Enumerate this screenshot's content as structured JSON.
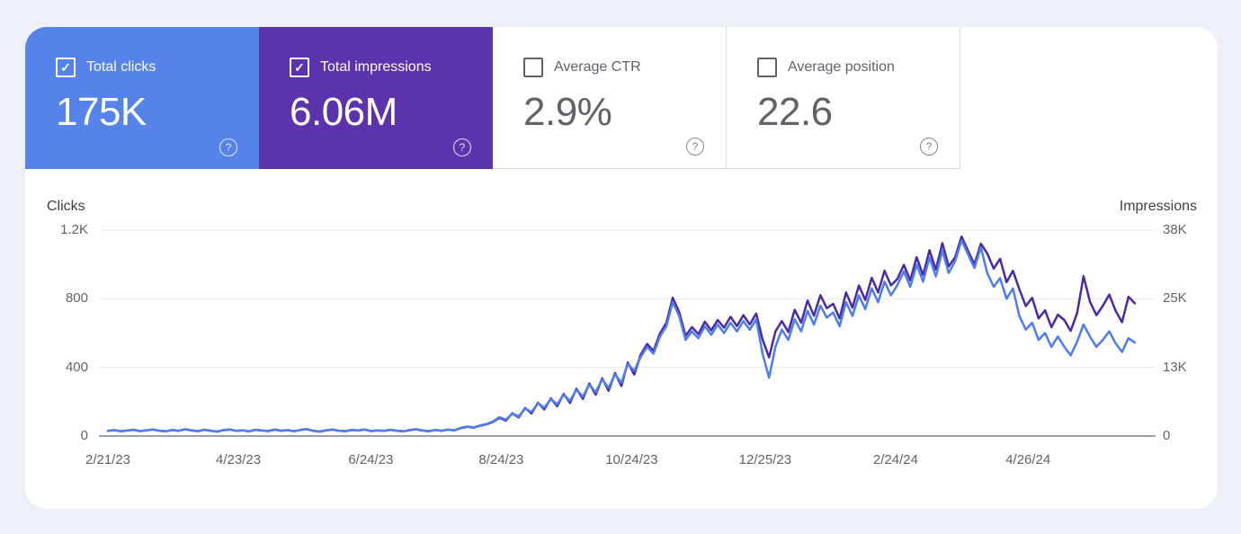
{
  "app": "Search Console Performance",
  "colors": {
    "page_background": "#EDF1F7",
    "panel_background": "#FFFFFF",
    "clicks_card": "#5583EA",
    "impressions_card": "#5B33AC",
    "clicks_line": "#4D7CEE",
    "impressions_line": "#4B2AA3",
    "gridline": "#e8eaed",
    "axis_line": "#9aa0a6",
    "muted_text": "#5f6368"
  },
  "metric_cards": [
    {
      "label": "Total clicks",
      "value": "175K",
      "checked": true,
      "selected": true,
      "bg": "#5583EA"
    },
    {
      "label": "Total impressions",
      "value": "6.06M",
      "checked": true,
      "selected": true,
      "bg": "#5B33AC"
    },
    {
      "label": "Average CTR",
      "value": "2.9%",
      "checked": false,
      "selected": false,
      "bg": "#FFFFFF"
    },
    {
      "label": "Average position",
      "value": "22.6",
      "checked": false,
      "selected": false,
      "bg": "#FFFFFF"
    }
  ],
  "help_icon_symbol": "?",
  "checkbox_check_symbol": "✓",
  "chart_data": {
    "type": "line",
    "grid": true,
    "left_axis": {
      "title": "Clicks",
      "max": 1200,
      "ticks": [
        "1.2K",
        "800",
        "400",
        "0"
      ]
    },
    "right_axis": {
      "title": "Impressions",
      "max": 38000,
      "ticks": [
        "38K",
        "25K",
        "13K",
        "0"
      ]
    },
    "x_ticks": [
      {
        "label": "2/21/23",
        "pos": 0.0
      },
      {
        "label": "4/23/23",
        "pos": 0.127
      },
      {
        "label": "6/24/23",
        "pos": 0.256
      },
      {
        "label": "8/24/23",
        "pos": 0.383
      },
      {
        "label": "10/24/23",
        "pos": 0.51
      },
      {
        "label": "12/25/23",
        "pos": 0.64
      },
      {
        "label": "2/24/24",
        "pos": 0.767
      },
      {
        "label": "4/26/24",
        "pos": 0.896
      }
    ],
    "series": [
      {
        "name": "Clicks",
        "axis": "left",
        "color": "#4D7CEE",
        "values": [
          30,
          34,
          28,
          32,
          36,
          29,
          33,
          38,
          31,
          27,
          35,
          30,
          39,
          33,
          28,
          36,
          31,
          26,
          34,
          38,
          30,
          33,
          27,
          36,
          32,
          29,
          37,
          31,
          34,
          28,
          35,
          40,
          30,
          26,
          33,
          37,
          31,
          28,
          35,
          32,
          38,
          29,
          33,
          30,
          36,
          31,
          27,
          34,
          39,
          32,
          28,
          35,
          31,
          37,
          33,
          48,
          55,
          50,
          62,
          70,
          85,
          110,
          95,
          130,
          115,
          160,
          140,
          190,
          165,
          215,
          185,
          240,
          205,
          270,
          230,
          300,
          255,
          330,
          280,
          360,
          310,
          420,
          380,
          460,
          520,
          480,
          580,
          640,
          780,
          700,
          560,
          610,
          570,
          640,
          590,
          650,
          600,
          660,
          610,
          670,
          620,
          680,
          480,
          340,
          520,
          620,
          560,
          680,
          610,
          730,
          650,
          760,
          690,
          720,
          640,
          780,
          700,
          820,
          740,
          860,
          780,
          900,
          820,
          880,
          960,
          870,
          1000,
          900,
          1040,
          930,
          1080,
          950,
          1020,
          1140,
          1060,
          980,
          1100,
          950,
          870,
          920,
          800,
          860,
          700,
          620,
          660,
          560,
          600,
          520,
          580,
          520,
          470,
          550,
          650,
          580,
          520,
          560,
          610,
          540,
          490,
          570,
          545
        ]
      },
      {
        "name": "Impressions",
        "axis": "right",
        "color": "#4B2AA3",
        "values": [
          950,
          1080,
          890,
          1010,
          1140,
          920,
          1050,
          1200,
          980,
          860,
          1110,
          950,
          1240,
          1050,
          890,
          1140,
          980,
          820,
          1080,
          1200,
          950,
          1050,
          860,
          1140,
          1010,
          920,
          1170,
          980,
          1080,
          890,
          1110,
          1270,
          950,
          820,
          1050,
          1170,
          980,
          890,
          1110,
          1010,
          1200,
          920,
          1050,
          950,
          1140,
          980,
          860,
          1080,
          1240,
          1010,
          890,
          1110,
          980,
          1170,
          1050,
          1480,
          1690,
          1540,
          1910,
          2150,
          2610,
          3380,
          2830,
          4200,
          3430,
          5170,
          4170,
          6140,
          4920,
          6950,
          5510,
          7760,
          6110,
          8730,
          6850,
          9700,
          7600,
          10660,
          8350,
          11640,
          9240,
          13570,
          11330,
          15000,
          17000,
          15700,
          18900,
          20900,
          25500,
          22900,
          18500,
          20100,
          18800,
          21100,
          19500,
          21400,
          20000,
          22000,
          20300,
          22300,
          20600,
          22600,
          17800,
          14500,
          19300,
          21200,
          19200,
          23300,
          20900,
          25000,
          22200,
          26000,
          23600,
          24400,
          21700,
          26500,
          23700,
          27800,
          25100,
          29200,
          26500,
          30500,
          27800,
          29000,
          31600,
          28700,
          33000,
          29700,
          34300,
          30700,
          35600,
          31300,
          33000,
          36800,
          34200,
          31700,
          35500,
          33700,
          30900,
          32700,
          28400,
          30500,
          27100,
          24000,
          25500,
          21700,
          23200,
          20100,
          22400,
          21400,
          19400,
          22700,
          29500,
          24800,
          22300,
          24000,
          26100,
          23100,
          21000,
          25700,
          24500
        ]
      }
    ]
  }
}
